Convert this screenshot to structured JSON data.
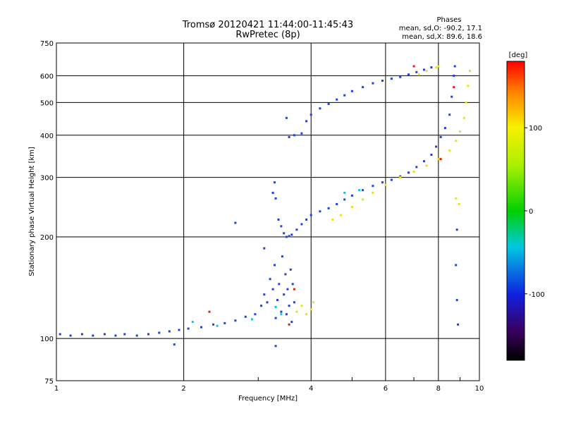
{
  "chart_data": {
    "type": "scatter",
    "title": "Tromsø 20120421 11:44:00-11:45:43",
    "subtitle": "RwPretec (8p)",
    "stats": {
      "heading": "Phases",
      "o_line": "mean, sd,O: -90.2, 17.1",
      "x_line": "mean, sd,X: 89.6, 18.6"
    },
    "xlabel": "Frequency [MHz]",
    "ylabel": "Stationary phase Virtual Height [km]",
    "xscale": "log",
    "yscale": "log",
    "xlim": [
      1,
      10
    ],
    "ylim": [
      75,
      750
    ],
    "xticks": [
      1,
      2,
      4,
      6,
      8,
      10
    ],
    "yticks": [
      75,
      100,
      200,
      300,
      400,
      500,
      600,
      750
    ],
    "grid": true,
    "colorbar": {
      "label": "[deg]",
      "range": [
        -180,
        180
      ],
      "ticks": [
        100,
        0,
        -100
      ]
    },
    "series": [
      {
        "color": "#2040e0",
        "points": [
          [
            1.02,
            103
          ],
          [
            1.08,
            102
          ],
          [
            1.15,
            103
          ],
          [
            1.22,
            102
          ],
          [
            1.3,
            103
          ],
          [
            1.38,
            102
          ],
          [
            1.45,
            103
          ],
          [
            1.55,
            102
          ],
          [
            1.65,
            103
          ],
          [
            1.75,
            104
          ],
          [
            1.85,
            105
          ],
          [
            1.95,
            106
          ],
          [
            2.05,
            107
          ],
          [
            2.2,
            108
          ],
          [
            2.35,
            110
          ],
          [
            2.5,
            111
          ],
          [
            2.65,
            113
          ],
          [
            2.8,
            116
          ],
          [
            2.95,
            118
          ],
          [
            3.05,
            125
          ],
          [
            3.1,
            135
          ],
          [
            3.15,
            128
          ],
          [
            3.2,
            150
          ],
          [
            3.25,
            140
          ],
          [
            3.28,
            165
          ],
          [
            3.3,
            115
          ],
          [
            3.33,
            130
          ],
          [
            3.36,
            145
          ],
          [
            3.4,
            120
          ],
          [
            3.42,
            175
          ],
          [
            3.45,
            135
          ],
          [
            3.48,
            155
          ],
          [
            3.5,
            118
          ],
          [
            3.52,
            140
          ],
          [
            3.55,
            125
          ],
          [
            3.58,
            160
          ],
          [
            3.6,
            112
          ],
          [
            3.62,
            145
          ],
          [
            3.65,
            128
          ],
          [
            3.1,
            185
          ],
          [
            3.25,
            270
          ],
          [
            3.28,
            290
          ],
          [
            3.3,
            260
          ],
          [
            3.35,
            225
          ],
          [
            3.4,
            215
          ],
          [
            3.45,
            205
          ],
          [
            3.5,
            200
          ],
          [
            3.55,
            201
          ],
          [
            3.6,
            203
          ],
          [
            3.7,
            210
          ],
          [
            3.8,
            218
          ],
          [
            3.9,
            225
          ],
          [
            4.0,
            232
          ],
          [
            4.2,
            238
          ],
          [
            4.4,
            243
          ],
          [
            4.6,
            250
          ],
          [
            4.8,
            258
          ],
          [
            5.0,
            265
          ],
          [
            5.3,
            275
          ],
          [
            5.6,
            283
          ],
          [
            5.9,
            290
          ],
          [
            6.2,
            295
          ],
          [
            6.5,
            302
          ],
          [
            6.8,
            310
          ],
          [
            7.1,
            322
          ],
          [
            7.4,
            335
          ],
          [
            7.7,
            350
          ],
          [
            7.9,
            370
          ],
          [
            8.1,
            395
          ],
          [
            8.3,
            420
          ],
          [
            8.5,
            460
          ],
          [
            8.6,
            520
          ],
          [
            8.7,
            600
          ],
          [
            8.75,
            640
          ],
          [
            3.55,
            395
          ],
          [
            3.65,
            400
          ],
          [
            3.8,
            405
          ],
          [
            3.9,
            440
          ],
          [
            4.0,
            460
          ],
          [
            4.2,
            480
          ],
          [
            4.4,
            495
          ],
          [
            4.6,
            510
          ],
          [
            4.8,
            525
          ],
          [
            5.0,
            540
          ],
          [
            5.3,
            555
          ],
          [
            5.6,
            570
          ],
          [
            5.9,
            580
          ],
          [
            6.2,
            588
          ],
          [
            6.5,
            595
          ],
          [
            6.8,
            605
          ],
          [
            7.1,
            615
          ],
          [
            7.4,
            625
          ],
          [
            7.7,
            635
          ],
          [
            3.5,
            450
          ],
          [
            2.65,
            220
          ],
          [
            8.8,
            165
          ],
          [
            8.85,
            130
          ],
          [
            8.9,
            110
          ],
          [
            8.85,
            210
          ],
          [
            3.3,
            95
          ],
          [
            1.9,
            96
          ]
        ]
      },
      {
        "color": "#e8e020",
        "points": [
          [
            3.7,
            120
          ],
          [
            3.8,
            125
          ],
          [
            3.9,
            118
          ],
          [
            4.0,
            122
          ],
          [
            4.05,
            128
          ],
          [
            4.5,
            225
          ],
          [
            4.7,
            232
          ],
          [
            5.0,
            245
          ],
          [
            5.3,
            258
          ],
          [
            5.6,
            270
          ],
          [
            6.0,
            285
          ],
          [
            6.5,
            300
          ],
          [
            7.0,
            312
          ],
          [
            7.5,
            325
          ],
          [
            8.0,
            340
          ],
          [
            8.5,
            360
          ],
          [
            8.8,
            385
          ],
          [
            9.0,
            410
          ],
          [
            9.2,
            450
          ],
          [
            9.3,
            500
          ],
          [
            9.4,
            560
          ],
          [
            9.5,
            620
          ],
          [
            7.2,
            605
          ],
          [
            7.5,
            620
          ],
          [
            7.9,
            635
          ],
          [
            8.0,
            640
          ],
          [
            8.8,
            260
          ],
          [
            8.95,
            250
          ]
        ]
      },
      {
        "color": "#10c8d8",
        "points": [
          [
            2.1,
            112
          ],
          [
            2.4,
            109
          ],
          [
            2.9,
            114
          ],
          [
            3.4,
            118
          ],
          [
            4.8,
            270
          ],
          [
            5.2,
            275
          ],
          [
            3.3,
            124
          ]
        ]
      },
      {
        "color": "#e02010",
        "points": [
          [
            3.65,
            140
          ],
          [
            3.55,
            110
          ],
          [
            7.0,
            640
          ],
          [
            8.1,
            340
          ],
          [
            8.7,
            555
          ],
          [
            2.3,
            120
          ]
        ]
      }
    ]
  }
}
